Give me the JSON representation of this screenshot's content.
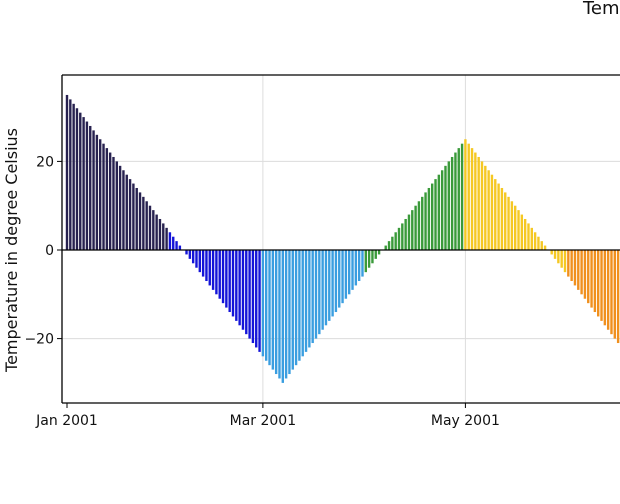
{
  "chart_data": {
    "type": "bar",
    "title": "Tem",
    "xlabel": "",
    "ylabel": "Temperature in degree Celsius",
    "x_start": "2001-01-01",
    "x_step": "1 day",
    "xticks": [
      {
        "date": "2001-01-01",
        "label": "Jan 2001"
      },
      {
        "date": "2001-03-01",
        "label": "Mar 2001"
      },
      {
        "date": "2001-05-01",
        "label": "May 2001"
      }
    ],
    "yticks": [
      -20,
      0,
      20
    ],
    "ylim": [
      -34.5,
      39.5
    ],
    "grid": true,
    "month_colors": {
      "Jan": "#27214f",
      "Feb": "#1414d8",
      "Mar": "#3a9ee0",
      "Apr": "#3a9a3a",
      "May": "#f5c823",
      "Jun": "#f0901e"
    },
    "values": [
      35,
      34,
      33,
      32,
      31,
      30,
      29,
      28,
      27,
      26,
      25,
      24,
      23,
      22,
      21,
      20,
      19,
      18,
      17,
      16,
      15,
      14,
      13,
      12,
      11,
      10,
      9,
      8,
      7,
      6,
      5,
      4,
      3,
      2,
      1,
      0,
      -1,
      -2,
      -3,
      -4,
      -5,
      -6,
      -7,
      -8,
      -9,
      -10,
      -11,
      -12,
      -13,
      -14,
      -15,
      -16,
      -17,
      -18,
      -19,
      -20,
      -21,
      -22,
      -23,
      -24,
      -25,
      -26,
      -27,
      -28,
      -29,
      -30,
      -29,
      -28,
      -27,
      -26,
      -25,
      -24,
      -23,
      -22,
      -21,
      -20,
      -19,
      -18,
      -17,
      -16,
      -15,
      -14,
      -13,
      -12,
      -11,
      -10,
      -9,
      -8,
      -7,
      -6,
      -5,
      -4,
      -3,
      -2,
      -1,
      0,
      1,
      2,
      3,
      4,
      5,
      6,
      7,
      8,
      9,
      10,
      11,
      12,
      13,
      14,
      15,
      16,
      17,
      18,
      19,
      20,
      21,
      22,
      23,
      24,
      25,
      24,
      23,
      22,
      21,
      20,
      19,
      18,
      17,
      16,
      15,
      14,
      13,
      12,
      11,
      10,
      9,
      8,
      7,
      6,
      5,
      4,
      3,
      2,
      1,
      0,
      -1,
      -2,
      -3,
      -4,
      -5,
      -6,
      -7,
      -8,
      -9,
      -10,
      -11,
      -12,
      -13,
      -14,
      -15,
      -16,
      -17,
      -18,
      -19,
      -20,
      -21
    ]
  }
}
